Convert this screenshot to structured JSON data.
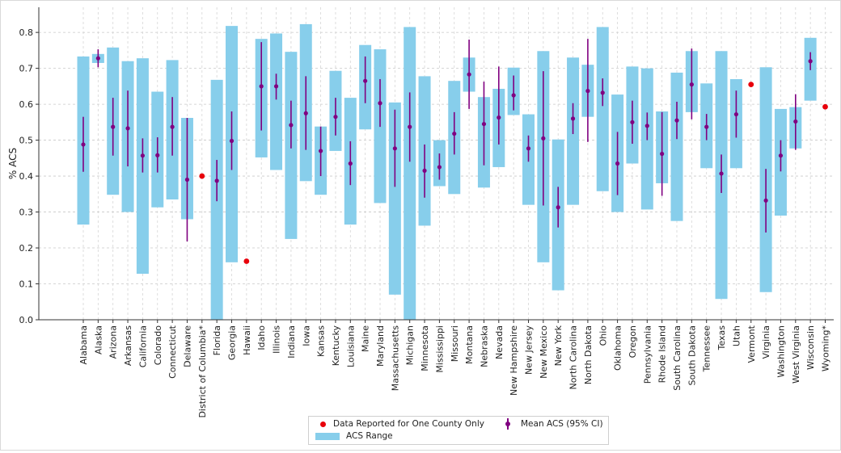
{
  "chart_data": {
    "type": "bar",
    "title": "",
    "xlabel": "",
    "ylabel": "% ACS",
    "ylim": [
      0,
      0.87
    ],
    "yticks": [
      "0.0",
      "0.1",
      "0.2",
      "0.3",
      "0.4",
      "0.5",
      "0.6",
      "0.7",
      "0.8"
    ],
    "grid": true,
    "legend_position": "bottom-center",
    "colors": {
      "range": "#87ceeb",
      "mean": "#800080",
      "single_county": "#e8000b"
    },
    "legend": {
      "single_county": "Data Reported for One County Only",
      "range": "ACS Range",
      "mean": "Mean ACS (95% CI)"
    },
    "categories": [
      "Alabama",
      "Alaska",
      "Arizona",
      "Arkansas",
      "California",
      "Colorado",
      "Connecticut",
      "Delaware",
      "District of Columbia*",
      "Florida",
      "Georgia",
      "Hawaii",
      "Idaho",
      "Illinois",
      "Indiana",
      "Iowa",
      "Kansas",
      "Kentucky",
      "Louisiana",
      "Maine",
      "Maryland",
      "Massachusetts",
      "Michigan",
      "Minnesota",
      "Mississippi",
      "Missouri",
      "Montana",
      "Nebraska",
      "Nevada",
      "New Hampshire",
      "New Jersey",
      "New Mexico",
      "New York",
      "North Carolina",
      "North Dakota",
      "Ohio",
      "Oklahoma",
      "Oregon",
      "Pennsylvania",
      "Rhode Island",
      "South Carolina",
      "South Dakota",
      "Tennessee",
      "Texas",
      "Utah",
      "Vermont",
      "Virginia",
      "Washington",
      "West Virginia",
      "Wisconsin",
      "Wyoming*"
    ],
    "range_min": [
      0.265,
      0.715,
      0.348,
      0.3,
      0.128,
      0.313,
      0.335,
      0.28,
      null,
      0.0,
      0.16,
      null,
      0.452,
      0.417,
      0.225,
      0.386,
      0.348,
      0.47,
      0.265,
      0.53,
      0.325,
      0.07,
      0.0,
      0.262,
      0.372,
      0.35,
      0.635,
      0.368,
      0.425,
      0.57,
      0.32,
      0.16,
      0.082,
      0.32,
      0.565,
      0.358,
      0.3,
      0.435,
      0.307,
      0.38,
      0.275,
      0.578,
      0.422,
      0.058,
      0.422,
      null,
      0.077,
      0.29,
      0.477,
      0.61,
      null
    ],
    "range_max": [
      0.733,
      0.74,
      0.758,
      0.72,
      0.728,
      0.635,
      0.723,
      0.562,
      null,
      0.668,
      0.818,
      null,
      0.782,
      0.797,
      0.746,
      0.823,
      0.538,
      0.693,
      0.618,
      0.765,
      0.753,
      0.605,
      0.815,
      0.678,
      0.5,
      0.665,
      0.73,
      0.62,
      0.643,
      0.702,
      0.572,
      0.748,
      0.502,
      0.73,
      0.71,
      0.815,
      0.627,
      0.705,
      0.7,
      0.58,
      0.688,
      0.748,
      0.658,
      0.748,
      0.67,
      null,
      0.703,
      0.587,
      0.592,
      0.785,
      null
    ],
    "mean": [
      0.488,
      0.728,
      0.537,
      0.533,
      0.457,
      0.458,
      0.537,
      0.39,
      0.4,
      0.387,
      0.498,
      0.163,
      0.65,
      0.65,
      0.542,
      0.575,
      0.47,
      0.565,
      0.435,
      0.665,
      0.603,
      0.477,
      0.537,
      0.415,
      0.425,
      0.518,
      0.683,
      0.545,
      0.563,
      0.625,
      0.477,
      0.505,
      0.313,
      0.56,
      0.637,
      0.632,
      0.435,
      0.55,
      0.54,
      0.462,
      0.555,
      0.655,
      0.537,
      0.407,
      0.572,
      0.655,
      0.332,
      0.457,
      0.552,
      0.72,
      0.593
    ],
    "ci_low": [
      0.412,
      0.703,
      0.457,
      0.427,
      0.41,
      0.41,
      0.457,
      0.218,
      null,
      0.33,
      0.417,
      null,
      0.527,
      0.613,
      0.477,
      0.473,
      0.4,
      0.513,
      0.375,
      0.603,
      0.537,
      0.37,
      0.44,
      0.34,
      0.39,
      0.46,
      0.587,
      0.43,
      0.488,
      0.583,
      0.44,
      0.318,
      0.257,
      0.517,
      0.495,
      0.595,
      0.347,
      0.49,
      0.5,
      0.345,
      0.503,
      0.558,
      0.5,
      0.353,
      0.507,
      null,
      0.243,
      0.413,
      0.473,
      0.695,
      null
    ],
    "ci_high": [
      0.565,
      0.753,
      0.618,
      0.638,
      0.505,
      0.508,
      0.62,
      0.562,
      null,
      0.445,
      0.58,
      null,
      0.773,
      0.685,
      0.61,
      0.678,
      0.538,
      0.618,
      0.497,
      0.733,
      0.67,
      0.585,
      0.633,
      0.488,
      0.463,
      0.578,
      0.78,
      0.663,
      0.705,
      0.68,
      0.513,
      0.692,
      0.37,
      0.603,
      0.782,
      0.672,
      0.523,
      0.61,
      0.577,
      0.578,
      0.607,
      0.755,
      0.573,
      0.46,
      0.638,
      null,
      0.42,
      0.5,
      0.628,
      0.745,
      null
    ],
    "single_county": [
      "District of Columbia*",
      "Hawaii",
      "Vermont",
      "Wyoming*"
    ]
  }
}
